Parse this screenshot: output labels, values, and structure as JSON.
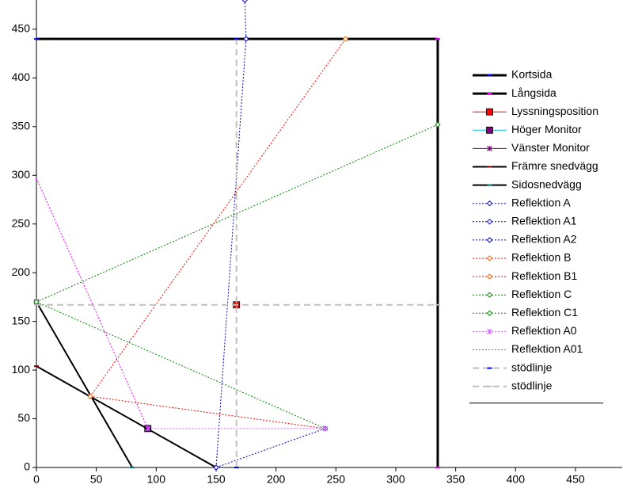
{
  "chart_data": {
    "type": "scatter",
    "xlim": [
      0,
      489
    ],
    "ylim": [
      0,
      480
    ],
    "xticks": [
      0,
      50,
      100,
      150,
      200,
      250,
      300,
      350,
      400,
      450
    ],
    "yticks": [
      0,
      50,
      100,
      150,
      200,
      250,
      300,
      350,
      400,
      450
    ],
    "grid": false,
    "legend": "right",
    "series": [
      {
        "name": "Kortsida",
        "color": "#000000",
        "line_width": 3,
        "dash": "solid",
        "marker": "dash",
        "marker_color": "#0000ff",
        "x": [
          0,
          335
        ],
        "values": [
          440,
          440
        ]
      },
      {
        "name": "Långsida",
        "color": "#000000",
        "line_width": 3,
        "dash": "solid",
        "marker": "dash",
        "marker_color": "#ff00ff",
        "x": [
          335,
          335
        ],
        "values": [
          440,
          0
        ]
      },
      {
        "name": "Lyssningsposition",
        "color": "#ff0000",
        "line_width": 1,
        "dash": "solid",
        "marker": "square",
        "marker_color": "#ff0000",
        "x": [
          167
        ],
        "values": [
          167
        ]
      },
      {
        "name": "Höger Monitor",
        "color": "#00cccc",
        "line_width": 1,
        "dash": "solid",
        "marker": "square",
        "marker_color": "#800080",
        "x": [
          93
        ],
        "values": [
          40
        ]
      },
      {
        "name": "Vänster Monitor",
        "color": "#800080",
        "line_width": 1,
        "dash": "solid",
        "marker": "star",
        "marker_color": "#800080",
        "x": [
          0
        ],
        "values": [
          170
        ]
      },
      {
        "name": "Främre snedvägg",
        "color": "#000000",
        "line_width": 2,
        "dash": "solid",
        "marker": "dash",
        "marker_color": "#800000",
        "x": [
          0,
          150
        ],
        "values": [
          104,
          0
        ]
      },
      {
        "name": "Sidosnedvägg",
        "color": "#000000",
        "line_width": 2,
        "dash": "solid",
        "marker": "dash",
        "marker_color": "#008080",
        "x": [
          0,
          80
        ],
        "values": [
          170,
          0
        ]
      },
      {
        "name": "Reflektion A",
        "color": "#0000cc",
        "line_width": 1,
        "dash": "dot",
        "marker": "diamond",
        "marker_color": "#0000cc",
        "x": [
          150,
          175
        ],
        "values": [
          0,
          440
        ]
      },
      {
        "name": "Reflektion A1",
        "color": "#0000cc",
        "line_width": 1,
        "dash": "dot",
        "marker": "diamond",
        "marker_color": "#0000cc",
        "x": [
          150,
          241
        ],
        "values": [
          0,
          40
        ]
      },
      {
        "name": "Reflektion A2",
        "color": "#0000cc",
        "line_width": 1,
        "dash": "dot",
        "marker": "diamond",
        "marker_color": "#0000cc",
        "x": [
          175,
          174
        ],
        "values": [
          440,
          480
        ]
      },
      {
        "name": "Reflektion B",
        "color": "#ff0000",
        "line_width": 1,
        "dash": "dot",
        "marker": "diamond",
        "marker_color": "#ff6600",
        "x": [
          45,
          258
        ],
        "values": [
          73,
          440
        ]
      },
      {
        "name": "Reflektion B1",
        "color": "#ff0000",
        "line_width": 1,
        "dash": "dot",
        "marker": "diamond",
        "marker_color": "#ff6600",
        "x": [
          45,
          241
        ],
        "values": [
          73,
          40
        ]
      },
      {
        "name": "Reflektion C",
        "color": "#008000",
        "line_width": 1,
        "dash": "dot",
        "marker": "diamond",
        "marker_color": "#008000",
        "x": [
          0,
          335
        ],
        "values": [
          170,
          352
        ]
      },
      {
        "name": "Reflektion C1",
        "color": "#008000",
        "line_width": 1,
        "dash": "dot",
        "marker": "diamond",
        "marker_color": "#008000",
        "x": [
          0,
          241
        ],
        "values": [
          170,
          40
        ]
      },
      {
        "name": "Reflektion A0",
        "color": "#cc66ff",
        "line_width": 1,
        "dash": "dot",
        "marker": "star",
        "marker_color": "#cc66ff",
        "x": [
          93,
          241
        ],
        "values": [
          40,
          40
        ]
      },
      {
        "name": "Reflektion A01",
        "color": "#ff00ff",
        "line_width": 1,
        "dash": "dot",
        "marker": "none",
        "marker_color": "#ff00ff",
        "x": [
          0,
          93
        ],
        "values": [
          297,
          40
        ]
      },
      {
        "name": "stödlinje",
        "color": "#c0c0c0",
        "line_width": 2,
        "dash": "dash",
        "marker": "dash",
        "marker_color": "#0000ff",
        "x": [
          167,
          167
        ],
        "values": [
          0,
          440
        ]
      },
      {
        "name": "stödlinje",
        "color": "#c0c0c0",
        "line_width": 2,
        "dash": "dash",
        "marker": "dash",
        "marker_color": "#c0c0c0",
        "x": [
          0,
          335
        ],
        "values": [
          167,
          167
        ]
      }
    ]
  }
}
